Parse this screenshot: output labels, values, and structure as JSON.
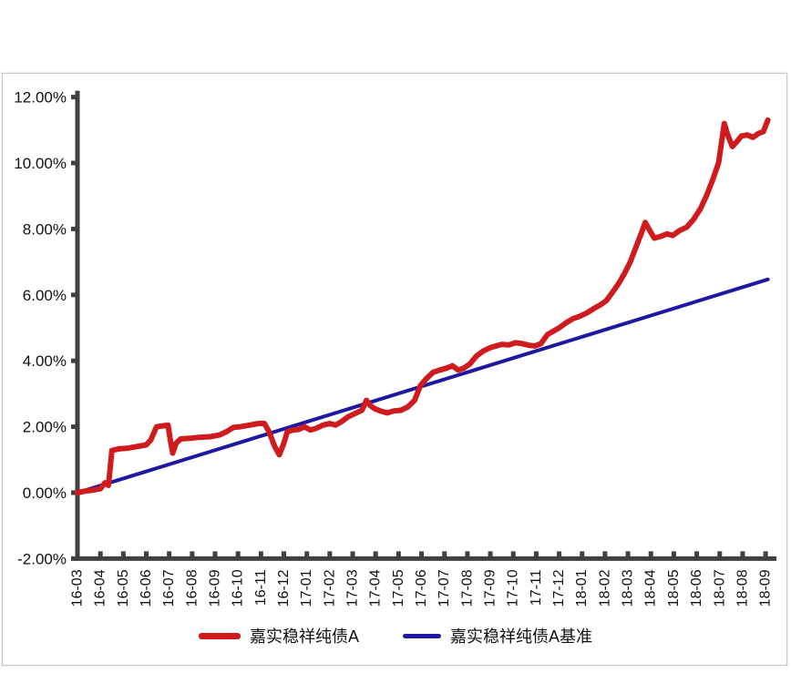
{
  "chart_data": {
    "type": "line",
    "title": "",
    "xlabel": "",
    "ylabel": "",
    "y_axis": {
      "tick_labels": [
        "12.00%",
        "10.00%",
        "8.00%",
        "6.00%",
        "4.00%",
        "2.00%",
        "0.00%",
        "-2.00%"
      ],
      "tick_values": [
        12,
        10,
        8,
        6,
        4,
        2,
        0,
        -2
      ],
      "range": [
        -2,
        12
      ],
      "unit": "%"
    },
    "categories": [
      "16-03",
      "16-04",
      "16-05",
      "16-06",
      "16-07",
      "16-08",
      "16-09",
      "16-10",
      "16-11",
      "16-12",
      "17-01",
      "17-02",
      "17-03",
      "17-04",
      "17-05",
      "17-06",
      "17-07",
      "17-08",
      "17-09",
      "17-10",
      "17-11",
      "17-12",
      "18-01",
      "18-02",
      "18-03",
      "18-04",
      "18-05",
      "18-06",
      "18-07",
      "18-08",
      "18-09"
    ],
    "grid": false,
    "legend_position": "bottom-center",
    "series": [
      {
        "name": "嘉实稳祥纯债A",
        "color": "#cf1b1e",
        "line_width": 6,
        "monthly_values": [
          0.0,
          0.1,
          1.35,
          1.45,
          1.9,
          1.65,
          1.7,
          2.0,
          2.1,
          1.3,
          1.95,
          2.1,
          2.4,
          2.5,
          2.5,
          3.3,
          3.75,
          3.85,
          4.4,
          4.55,
          4.45,
          5.0,
          5.4,
          5.8,
          6.9,
          7.9,
          7.8,
          8.45,
          10.2,
          10.85,
          11.1
        ],
        "points": [
          [
            0,
            0.0
          ],
          [
            0.35,
            0.05
          ],
          [
            0.7,
            0.08
          ],
          [
            1.0,
            0.12
          ],
          [
            1.2,
            0.3
          ],
          [
            1.35,
            0.22
          ],
          [
            1.5,
            1.28
          ],
          [
            1.8,
            1.33
          ],
          [
            2.2,
            1.35
          ],
          [
            2.6,
            1.4
          ],
          [
            3.0,
            1.45
          ],
          [
            3.2,
            1.6
          ],
          [
            3.45,
            2.0
          ],
          [
            3.75,
            2.03
          ],
          [
            3.95,
            2.05
          ],
          [
            4.05,
            1.6
          ],
          [
            4.15,
            1.2
          ],
          [
            4.3,
            1.5
          ],
          [
            4.5,
            1.63
          ],
          [
            4.9,
            1.65
          ],
          [
            5.3,
            1.68
          ],
          [
            5.8,
            1.7
          ],
          [
            6.2,
            1.75
          ],
          [
            6.5,
            1.85
          ],
          [
            6.8,
            1.98
          ],
          [
            7.1,
            2.0
          ],
          [
            7.5,
            2.05
          ],
          [
            7.9,
            2.1
          ],
          [
            8.15,
            2.1
          ],
          [
            8.35,
            1.85
          ],
          [
            8.6,
            1.4
          ],
          [
            8.8,
            1.15
          ],
          [
            9.0,
            1.5
          ],
          [
            9.15,
            1.85
          ],
          [
            9.4,
            1.9
          ],
          [
            9.65,
            1.92
          ],
          [
            9.9,
            2.0
          ],
          [
            10.15,
            1.9
          ],
          [
            10.4,
            1.95
          ],
          [
            10.7,
            2.05
          ],
          [
            11.0,
            2.1
          ],
          [
            11.25,
            2.05
          ],
          [
            11.5,
            2.15
          ],
          [
            11.8,
            2.3
          ],
          [
            12.1,
            2.4
          ],
          [
            12.4,
            2.5
          ],
          [
            12.6,
            2.8
          ],
          [
            12.75,
            2.65
          ],
          [
            12.95,
            2.55
          ],
          [
            13.2,
            2.48
          ],
          [
            13.5,
            2.42
          ],
          [
            13.8,
            2.48
          ],
          [
            14.1,
            2.5
          ],
          [
            14.4,
            2.6
          ],
          [
            14.7,
            2.8
          ],
          [
            14.95,
            3.25
          ],
          [
            15.2,
            3.45
          ],
          [
            15.5,
            3.65
          ],
          [
            15.8,
            3.72
          ],
          [
            16.1,
            3.78
          ],
          [
            16.35,
            3.85
          ],
          [
            16.6,
            3.72
          ],
          [
            16.85,
            3.78
          ],
          [
            17.1,
            3.9
          ],
          [
            17.4,
            4.15
          ],
          [
            17.7,
            4.3
          ],
          [
            18.0,
            4.4
          ],
          [
            18.25,
            4.45
          ],
          [
            18.5,
            4.5
          ],
          [
            18.8,
            4.48
          ],
          [
            19.1,
            4.55
          ],
          [
            19.4,
            4.52
          ],
          [
            19.7,
            4.47
          ],
          [
            19.95,
            4.45
          ],
          [
            20.2,
            4.52
          ],
          [
            20.5,
            4.8
          ],
          [
            20.75,
            4.9
          ],
          [
            21.0,
            5.0
          ],
          [
            21.3,
            5.15
          ],
          [
            21.6,
            5.28
          ],
          [
            21.9,
            5.35
          ],
          [
            22.2,
            5.45
          ],
          [
            22.5,
            5.58
          ],
          [
            22.8,
            5.7
          ],
          [
            23.05,
            5.82
          ],
          [
            23.35,
            6.1
          ],
          [
            23.6,
            6.35
          ],
          [
            23.85,
            6.65
          ],
          [
            24.1,
            7.0
          ],
          [
            24.35,
            7.45
          ],
          [
            24.6,
            7.9
          ],
          [
            24.75,
            8.2
          ],
          [
            24.95,
            7.95
          ],
          [
            25.15,
            7.72
          ],
          [
            25.45,
            7.78
          ],
          [
            25.7,
            7.85
          ],
          [
            25.95,
            7.8
          ],
          [
            26.25,
            7.95
          ],
          [
            26.55,
            8.05
          ],
          [
            26.85,
            8.28
          ],
          [
            27.15,
            8.6
          ],
          [
            27.45,
            9.05
          ],
          [
            27.7,
            9.5
          ],
          [
            27.95,
            10.0
          ],
          [
            28.2,
            11.2
          ],
          [
            28.35,
            10.85
          ],
          [
            28.55,
            10.5
          ],
          [
            28.75,
            10.65
          ],
          [
            28.95,
            10.82
          ],
          [
            29.2,
            10.85
          ],
          [
            29.45,
            10.78
          ],
          [
            29.7,
            10.9
          ],
          [
            29.9,
            10.95
          ],
          [
            30.1,
            11.3
          ]
        ]
      },
      {
        "name": "嘉实稳祥纯债A基准",
        "color": "#1e17a0",
        "line_width": 4,
        "monthly_values": [
          0.0,
          0.22,
          0.43,
          0.65,
          0.86,
          1.08,
          1.29,
          1.51,
          1.72,
          1.94,
          2.15,
          2.37,
          2.58,
          2.8,
          3.01,
          3.23,
          3.44,
          3.66,
          3.87,
          4.09,
          4.3,
          4.52,
          4.73,
          4.95,
          5.16,
          5.38,
          5.59,
          5.81,
          6.02,
          6.24,
          6.45
        ],
        "points": [
          [
            0,
            0.0
          ],
          [
            30.1,
            6.47
          ]
        ]
      }
    ],
    "colors": {
      "axis": "#404040",
      "tick_text": "#111111",
      "background": "#ffffff",
      "frame_border": "#c9c9c9"
    }
  }
}
